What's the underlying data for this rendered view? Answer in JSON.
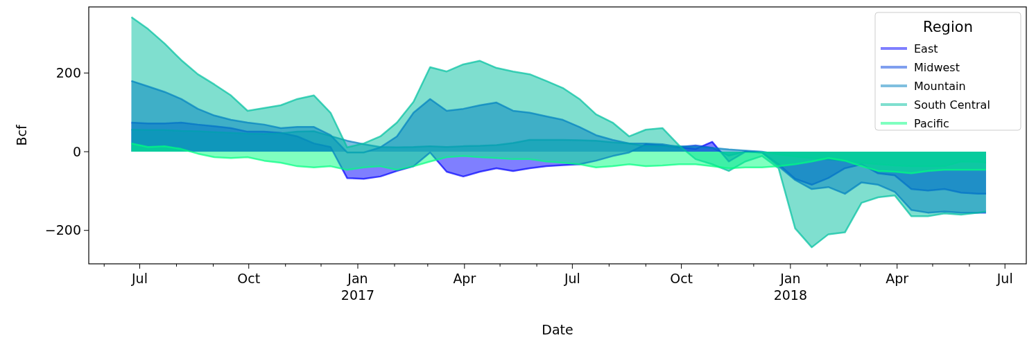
{
  "chart_data": {
    "type": "area",
    "xlabel": "Date",
    "ylabel": "Bcf",
    "legend_title": "Region",
    "legend": "top right",
    "grid": false,
    "x": [
      "2016-06-24",
      "2016-07-08",
      "2016-07-22",
      "2016-08-05",
      "2016-08-19",
      "2016-09-02",
      "2016-09-16",
      "2016-09-30",
      "2016-10-14",
      "2016-10-28",
      "2016-11-11",
      "2016-11-25",
      "2016-12-09",
      "2016-12-23",
      "2017-01-06",
      "2017-01-20",
      "2017-02-03",
      "2017-02-17",
      "2017-03-03",
      "2017-03-17",
      "2017-03-31",
      "2017-04-14",
      "2017-04-28",
      "2017-05-12",
      "2017-05-26",
      "2017-06-09",
      "2017-06-23",
      "2017-07-07",
      "2017-07-21",
      "2017-08-04",
      "2017-08-18",
      "2017-09-01",
      "2017-09-15",
      "2017-09-29",
      "2017-10-13",
      "2017-10-27",
      "2017-11-10",
      "2017-11-24",
      "2017-12-08",
      "2017-12-22",
      "2018-01-05",
      "2018-01-19",
      "2018-02-02",
      "2018-02-16",
      "2018-03-02",
      "2018-03-16",
      "2018-03-30",
      "2018-04-13",
      "2018-04-27",
      "2018-05-11",
      "2018-05-25",
      "2018-06-08",
      "2018-06-15"
    ],
    "xlim": [
      "2016-05-19",
      "2018-07-19"
    ],
    "xticks": [
      {
        "value": "2016-06-01",
        "label": null
      },
      {
        "value": "2016-07-01",
        "label": "Jul"
      },
      {
        "value": "2016-08-01",
        "label": null
      },
      {
        "value": "2016-09-01",
        "label": null
      },
      {
        "value": "2016-10-01",
        "label": "Oct"
      },
      {
        "value": "2016-11-01",
        "label": null
      },
      {
        "value": "2016-12-01",
        "label": null
      },
      {
        "value": "2017-01-01",
        "label": "Jan\n2017"
      },
      {
        "value": "2017-02-01",
        "label": null
      },
      {
        "value": "2017-03-01",
        "label": null
      },
      {
        "value": "2017-04-01",
        "label": "Apr"
      },
      {
        "value": "2017-05-01",
        "label": null
      },
      {
        "value": "2017-06-01",
        "label": null
      },
      {
        "value": "2017-07-01",
        "label": "Jul"
      },
      {
        "value": "2017-08-01",
        "label": null
      },
      {
        "value": "2017-09-01",
        "label": null
      },
      {
        "value": "2017-10-01",
        "label": "Oct"
      },
      {
        "value": "2017-11-01",
        "label": null
      },
      {
        "value": "2017-12-01",
        "label": null
      },
      {
        "value": "2018-01-01",
        "label": "Jan\n2018"
      },
      {
        "value": "2018-02-01",
        "label": null
      },
      {
        "value": "2018-03-01",
        "label": null
      },
      {
        "value": "2018-04-01",
        "label": "Apr"
      },
      {
        "value": "2018-05-01",
        "label": null
      },
      {
        "value": "2018-06-01",
        "label": null
      },
      {
        "value": "2018-07-01",
        "label": "Jul"
      }
    ],
    "ylim": [
      -285,
      368
    ],
    "yticks": [
      {
        "value": -200,
        "label": "−200"
      },
      0,
      200
    ],
    "series": [
      {
        "name": "East",
        "color": "#0000ff",
        "values": [
          74,
          72,
          72,
          74,
          69,
          65,
          60,
          51,
          51,
          48,
          39,
          21,
          12,
          -67,
          -69,
          -63,
          -49,
          -37,
          -2,
          -51,
          -63,
          -51,
          -42,
          -49,
          -42,
          -37,
          -34,
          -32,
          -23,
          -11,
          -2,
          19,
          16,
          11,
          7,
          25,
          -25,
          0,
          -2,
          -32,
          -69,
          -84,
          -67,
          -42,
          -32,
          -55,
          -60,
          -95,
          -99,
          -95,
          -104,
          -107,
          -107
        ]
      },
      {
        "name": "Midwest",
        "color": "#0040df",
        "values": [
          180,
          166,
          152,
          134,
          109,
          92,
          81,
          74,
          69,
          60,
          63,
          63,
          42,
          -2,
          -2,
          11,
          39,
          99,
          134,
          104,
          109,
          118,
          125,
          104,
          99,
          90,
          81,
          63,
          42,
          30,
          21,
          21,
          19,
          12,
          16,
          10,
          -10,
          0,
          -2,
          -37,
          -72,
          -95,
          -90,
          -107,
          -78,
          -84,
          -102,
          -148,
          -155,
          -152,
          -155,
          -155,
          -155
        ]
      },
      {
        "name": "Mountain",
        "color": "#0080bf",
        "values": [
          56,
          55,
          55,
          53,
          52,
          50,
          48,
          46,
          45,
          47,
          51,
          52,
          40,
          28,
          19,
          12,
          11,
          12,
          14,
          12,
          14,
          15,
          17,
          22,
          30,
          30,
          30,
          29,
          28,
          24,
          21,
          14,
          14,
          14,
          12,
          10,
          6,
          3,
          0,
          -7,
          -12,
          -16,
          -20,
          -23,
          -28,
          -32,
          -35,
          -37,
          -37,
          -37,
          -25,
          -26,
          -28
        ]
      },
      {
        "name": "South Central",
        "color": "#00c0a0",
        "values": [
          342,
          312,
          275,
          233,
          197,
          171,
          143,
          104,
          111,
          118,
          134,
          143,
          99,
          11,
          21,
          39,
          74,
          127,
          215,
          204,
          222,
          231,
          213,
          204,
          197,
          180,
          162,
          134,
          95,
          74,
          39,
          56,
          60,
          16,
          -19,
          -32,
          -49,
          -25,
          -11,
          -42,
          -195,
          -243,
          -210,
          -205,
          -130,
          -116,
          -111,
          -164,
          -164,
          -157,
          -160,
          -155,
          -152
        ]
      },
      {
        "name": "Pacific",
        "color": "#00ff80",
        "values": [
          21,
          12,
          14,
          7,
          -5,
          -14,
          -16,
          -14,
          -23,
          -28,
          -37,
          -40,
          -37,
          -46,
          -40,
          -37,
          -46,
          -37,
          -25,
          -14,
          -11,
          -14,
          -16,
          -19,
          -19,
          -25,
          -28,
          -32,
          -40,
          -37,
          -32,
          -37,
          -35,
          -32,
          -32,
          -37,
          -42,
          -40,
          -40,
          -37,
          -32,
          -25,
          -16,
          -23,
          -37,
          -49,
          -51,
          -55,
          -49,
          -46,
          -46,
          -46,
          -46
        ]
      }
    ]
  }
}
